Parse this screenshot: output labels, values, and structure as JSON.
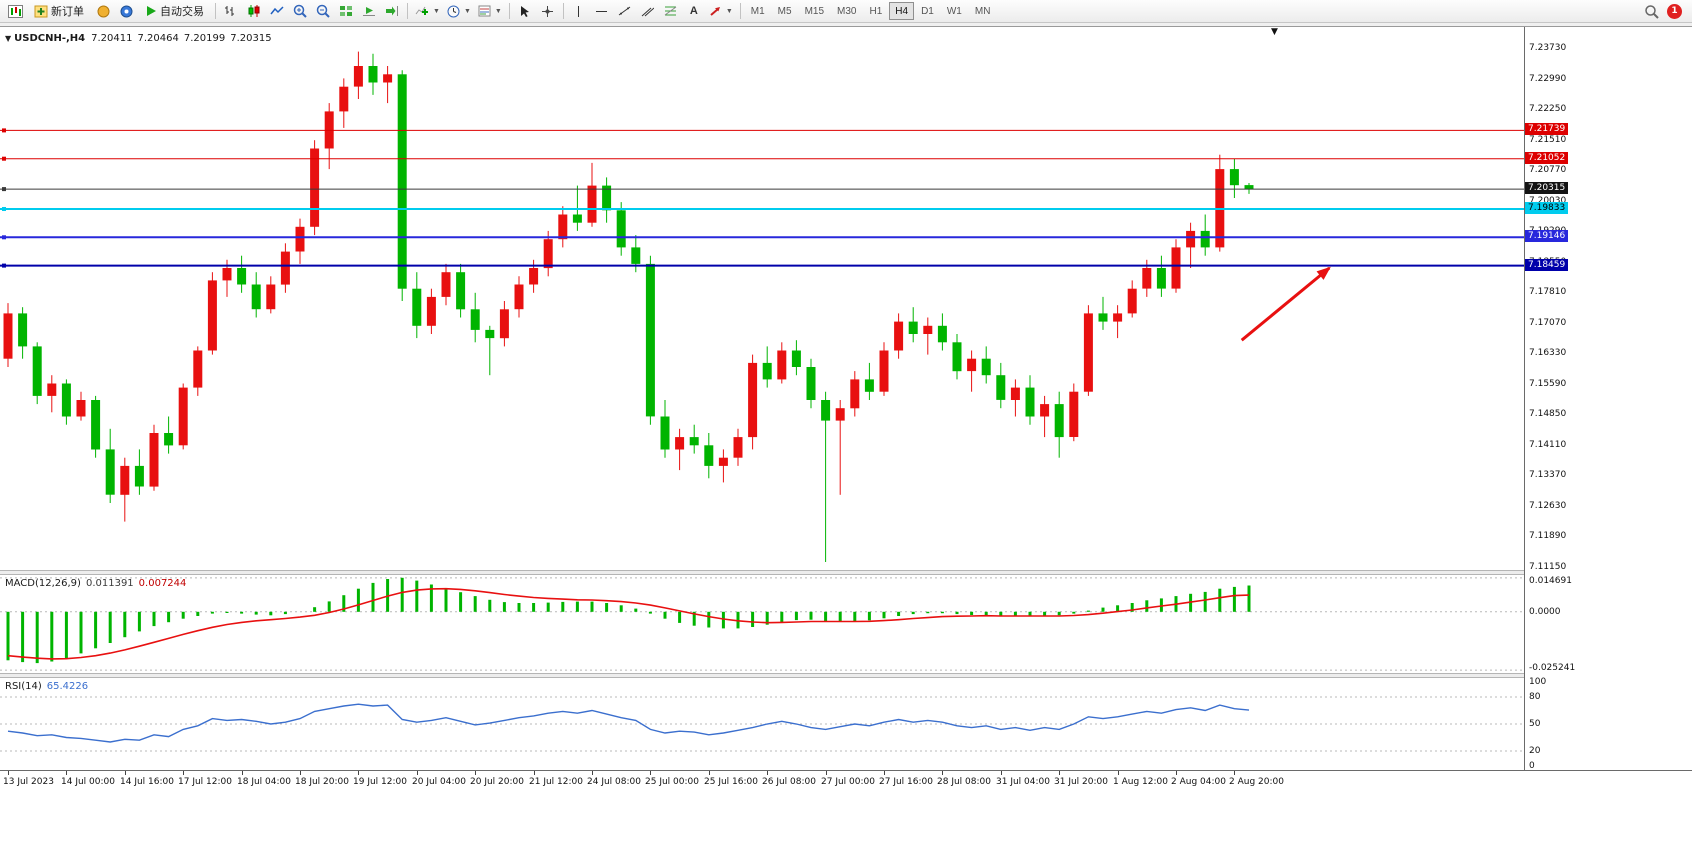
{
  "toolbar": {
    "new_order_label": "新订单",
    "auto_trading_label": "自动交易",
    "timeframes": [
      "M1",
      "M5",
      "M15",
      "M30",
      "H1",
      "H4",
      "D1",
      "W1",
      "MN"
    ],
    "active_timeframe": "H4",
    "notification_count": "1"
  },
  "chart": {
    "title_caret": "▼",
    "corner_caret": "▼",
    "symbol_title": "USDCNH-,H4",
    "ohlc": {
      "open": "7.20411",
      "high": "7.20464",
      "low": "7.20199",
      "close": "7.20315"
    }
  },
  "macd": {
    "label": "MACD(12,26,9)",
    "value_main": "0.011391",
    "value_signal": "0.007244",
    "axis_labels": [
      "0.014691",
      "0.0000",
      "-0.025241"
    ]
  },
  "rsi": {
    "label": "RSI(14)",
    "value": "65.4226",
    "levels": [
      80,
      50,
      20
    ],
    "axis_labels": [
      "100",
      "80",
      "50",
      "20",
      "0"
    ]
  },
  "chart_data": {
    "type": "candlestick",
    "symbol": "USDCNH",
    "timeframe": "H4",
    "price_range": [
      7.111,
      7.2415
    ],
    "price_axis_labels": [
      "7.23730",
      "7.22990",
      "7.22250",
      "7.21510",
      "7.20770",
      "7.20030",
      "7.19290",
      "7.18550",
      "7.17810",
      "7.17070",
      "7.16330",
      "7.15590",
      "7.14850",
      "7.14110",
      "7.13370",
      "7.12630",
      "7.11890",
      "7.11150"
    ],
    "time_labels": [
      "13 Jul 2023",
      "14 Jul 00:00",
      "14 Jul 16:00",
      "17 Jul 12:00",
      "18 Jul 04:00",
      "18 Jul 20:00",
      "19 Jul 12:00",
      "20 Jul 04:00",
      "20 Jul 20:00",
      "21 Jul 12:00",
      "24 Jul 08:00",
      "25 Jul 00:00",
      "25 Jul 16:00",
      "26 Jul 08:00",
      "27 Jul 00:00",
      "27 Jul 16:00",
      "28 Jul 08:00",
      "31 Jul 04:00",
      "31 Jul 20:00",
      "1 Aug 12:00",
      "2 Aug 04:00",
      "2 Aug 20:00"
    ],
    "time_label_every_n_bars": 4,
    "up_color": "#e81010",
    "down_color": "#00b400",
    "candles": [
      [
        7.162,
        7.1755,
        7.16,
        7.173
      ],
      [
        7.173,
        7.1745,
        7.162,
        7.165
      ],
      [
        7.165,
        7.166,
        7.151,
        7.153
      ],
      [
        7.153,
        7.158,
        7.149,
        7.156
      ],
      [
        7.156,
        7.157,
        7.146,
        7.148
      ],
      [
        7.148,
        7.154,
        7.147,
        7.152
      ],
      [
        7.152,
        7.153,
        7.138,
        7.14
      ],
      [
        7.14,
        7.145,
        7.127,
        7.129
      ],
      [
        7.129,
        7.138,
        7.1225,
        7.136
      ],
      [
        7.136,
        7.14,
        7.129,
        7.131
      ],
      [
        7.131,
        7.146,
        7.13,
        7.144
      ],
      [
        7.144,
        7.148,
        7.139,
        7.141
      ],
      [
        7.141,
        7.156,
        7.14,
        7.155
      ],
      [
        7.155,
        7.165,
        7.153,
        7.164
      ],
      [
        7.164,
        7.183,
        7.163,
        7.181
      ],
      [
        7.181,
        7.186,
        7.177,
        7.184
      ],
      [
        7.184,
        7.187,
        7.178,
        7.18
      ],
      [
        7.18,
        7.183,
        7.172,
        7.174
      ],
      [
        7.174,
        7.182,
        7.173,
        7.18
      ],
      [
        7.18,
        7.19,
        7.178,
        7.188
      ],
      [
        7.188,
        7.196,
        7.185,
        7.194
      ],
      [
        7.194,
        7.215,
        7.192,
        7.213
      ],
      [
        7.213,
        7.224,
        7.208,
        7.222
      ],
      [
        7.222,
        7.23,
        7.218,
        7.228
      ],
      [
        7.228,
        7.2365,
        7.225,
        7.233
      ],
      [
        7.233,
        7.236,
        7.226,
        7.229
      ],
      [
        7.229,
        7.233,
        7.224,
        7.231
      ],
      [
        7.231,
        7.232,
        7.176,
        7.179
      ],
      [
        7.179,
        7.183,
        7.167,
        7.17
      ],
      [
        7.17,
        7.179,
        7.168,
        7.177
      ],
      [
        7.177,
        7.185,
        7.175,
        7.183
      ],
      [
        7.183,
        7.185,
        7.172,
        7.174
      ],
      [
        7.174,
        7.178,
        7.166,
        7.169
      ],
      [
        7.169,
        7.17,
        7.158,
        7.167
      ],
      [
        7.167,
        7.176,
        7.165,
        7.174
      ],
      [
        7.174,
        7.182,
        7.172,
        7.18
      ],
      [
        7.18,
        7.186,
        7.178,
        7.184
      ],
      [
        7.184,
        7.193,
        7.182,
        7.191
      ],
      [
        7.191,
        7.199,
        7.189,
        7.197
      ],
      [
        7.197,
        7.204,
        7.193,
        7.195
      ],
      [
        7.195,
        7.2095,
        7.194,
        7.204
      ],
      [
        7.204,
        7.206,
        7.195,
        7.198
      ],
      [
        7.198,
        7.2,
        7.187,
        7.189
      ],
      [
        7.189,
        7.192,
        7.183,
        7.185
      ],
      [
        7.185,
        7.187,
        7.146,
        7.148
      ],
      [
        7.148,
        7.152,
        7.138,
        7.14
      ],
      [
        7.14,
        7.145,
        7.135,
        7.143
      ],
      [
        7.143,
        7.146,
        7.139,
        7.141
      ],
      [
        7.141,
        7.144,
        7.133,
        7.136
      ],
      [
        7.136,
        7.14,
        7.132,
        7.138
      ],
      [
        7.138,
        7.145,
        7.136,
        7.143
      ],
      [
        7.143,
        7.163,
        7.14,
        7.161
      ],
      [
        7.161,
        7.165,
        7.155,
        7.157
      ],
      [
        7.157,
        7.166,
        7.156,
        7.164
      ],
      [
        7.164,
        7.1665,
        7.158,
        7.16
      ],
      [
        7.16,
        7.162,
        7.15,
        7.152
      ],
      [
        7.152,
        7.154,
        7.1127,
        7.147
      ],
      [
        7.147,
        7.152,
        7.129,
        7.15
      ],
      [
        7.15,
        7.159,
        7.148,
        7.157
      ],
      [
        7.157,
        7.161,
        7.152,
        7.154
      ],
      [
        7.154,
        7.166,
        7.153,
        7.164
      ],
      [
        7.164,
        7.173,
        7.162,
        7.171
      ],
      [
        7.171,
        7.1745,
        7.166,
        7.168
      ],
      [
        7.168,
        7.172,
        7.163,
        7.17
      ],
      [
        7.17,
        7.173,
        7.164,
        7.166
      ],
      [
        7.166,
        7.168,
        7.157,
        7.159
      ],
      [
        7.159,
        7.164,
        7.154,
        7.162
      ],
      [
        7.162,
        7.165,
        7.156,
        7.158
      ],
      [
        7.158,
        7.161,
        7.15,
        7.152
      ],
      [
        7.152,
        7.157,
        7.148,
        7.155
      ],
      [
        7.155,
        7.158,
        7.146,
        7.148
      ],
      [
        7.148,
        7.153,
        7.143,
        7.151
      ],
      [
        7.151,
        7.154,
        7.138,
        7.143
      ],
      [
        7.143,
        7.156,
        7.142,
        7.154
      ],
      [
        7.154,
        7.175,
        7.153,
        7.173
      ],
      [
        7.173,
        7.177,
        7.169,
        7.171
      ],
      [
        7.171,
        7.175,
        7.167,
        7.173
      ],
      [
        7.173,
        7.181,
        7.172,
        7.179
      ],
      [
        7.179,
        7.186,
        7.177,
        7.184
      ],
      [
        7.184,
        7.187,
        7.177,
        7.179
      ],
      [
        7.179,
        7.191,
        7.178,
        7.189
      ],
      [
        7.189,
        7.195,
        7.184,
        7.193
      ],
      [
        7.193,
        7.197,
        7.187,
        7.189
      ],
      [
        7.189,
        7.2115,
        7.188,
        7.208
      ],
      [
        7.208,
        7.2105,
        7.201,
        7.2041
      ],
      [
        7.20411,
        7.20464,
        7.20199,
        7.20315
      ]
    ],
    "hlines": [
      {
        "price": 7.21739,
        "label": "7.21739",
        "color": "#dd0000",
        "width": 1,
        "tag_bg": "#dd0000",
        "tag_fg": "#ffffff"
      },
      {
        "price": 7.21052,
        "label": "7.21052",
        "color": "#dd0000",
        "width": 1,
        "tag_bg": "#dd0000",
        "tag_fg": "#ffffff"
      },
      {
        "price": 7.20315,
        "label": "7.20315",
        "color": "#3a3a3a",
        "width": 1,
        "tag_bg": "#141414",
        "tag_fg": "#ffffff"
      },
      {
        "price": 7.19833,
        "label": "7.19833",
        "color": "#00ccee",
        "width": 2,
        "tag_bg": "#00ccee",
        "tag_fg": "#000000"
      },
      {
        "price": 7.19146,
        "label": "7.19146",
        "color": "#2828dc",
        "width": 2,
        "tag_bg": "#2828dc",
        "tag_fg": "#ffffff"
      },
      {
        "price": 7.18459,
        "label": "7.18459",
        "color": "#0000aa",
        "width": 2,
        "tag_bg": "#0000aa",
        "tag_fg": "#ffffff"
      }
    ],
    "current_price": 7.20315,
    "arrow": {
      "from_bar": 84.5,
      "from_price": 7.1665,
      "to_bar": 90.5,
      "to_price": 7.184,
      "color": "#e81010"
    },
    "macd": {
      "range": [
        -0.0265,
        0.0155
      ],
      "hist_color": "#00b400",
      "signal_color": "#e81010",
      "histogram": [
        -0.021,
        -0.0218,
        -0.0222,
        -0.0215,
        -0.02,
        -0.018,
        -0.0158,
        -0.0135,
        -0.011,
        -0.0085,
        -0.0062,
        -0.0045,
        -0.003,
        -0.0018,
        -0.0008,
        -0.0005,
        -0.0008,
        -0.0012,
        -0.0015,
        -0.001,
        0.0,
        0.002,
        0.0045,
        0.0072,
        0.01,
        0.0125,
        0.0142,
        0.0147,
        0.0135,
        0.0118,
        0.0102,
        0.0085,
        0.0068,
        0.0052,
        0.0042,
        0.0038,
        0.0038,
        0.004,
        0.0043,
        0.0044,
        0.0044,
        0.0038,
        0.0028,
        0.0014,
        -0.0008,
        -0.003,
        -0.0048,
        -0.006,
        -0.0068,
        -0.0072,
        -0.0072,
        -0.0066,
        -0.0056,
        -0.0044,
        -0.0036,
        -0.0034,
        -0.004,
        -0.0044,
        -0.0042,
        -0.0037,
        -0.0028,
        -0.0018,
        -0.001,
        -0.0006,
        -0.0006,
        -0.001,
        -0.0014,
        -0.0016,
        -0.0018,
        -0.002,
        -0.002,
        -0.0018,
        -0.0015,
        -0.0008,
        0.0005,
        0.0018,
        0.0028,
        0.0038,
        0.005,
        0.0058,
        0.0068,
        0.0078,
        0.0086,
        0.01,
        0.0108,
        0.011391
      ],
      "signal": [
        -0.019,
        -0.0196,
        -0.0201,
        -0.0204,
        -0.0203,
        -0.0198,
        -0.019,
        -0.0179,
        -0.0165,
        -0.0149,
        -0.0132,
        -0.0115,
        -0.0098,
        -0.0082,
        -0.0067,
        -0.0055,
        -0.0046,
        -0.0039,
        -0.0034,
        -0.0029,
        -0.0023,
        -0.0015,
        -0.0003,
        0.0012,
        0.003,
        0.0049,
        0.0068,
        0.0084,
        0.0094,
        0.0099,
        0.01,
        0.0097,
        0.0091,
        0.0083,
        0.0075,
        0.0068,
        0.0062,
        0.0058,
        0.0055,
        0.0052,
        0.0051,
        0.0048,
        0.0044,
        0.0038,
        0.0029,
        0.0017,
        0.0004,
        -0.0009,
        -0.0021,
        -0.0031,
        -0.0039,
        -0.0044,
        -0.0047,
        -0.0046,
        -0.0044,
        -0.0042,
        -0.0042,
        -0.0042,
        -0.0042,
        -0.0041,
        -0.0038,
        -0.0034,
        -0.0029,
        -0.0025,
        -0.0021,
        -0.0019,
        -0.0018,
        -0.0017,
        -0.0018,
        -0.0018,
        -0.0018,
        -0.0018,
        -0.0018,
        -0.0016,
        -0.0012,
        -0.0006,
        0.0001,
        0.0008,
        0.0017,
        0.0025,
        0.0033,
        0.0042,
        0.0051,
        0.0061,
        0.007,
        0.007244
      ]
    },
    "rsi": {
      "scale": [
        0,
        100
      ],
      "color": "#3b6fce",
      "values": [
        42,
        40,
        37,
        38,
        35,
        34,
        32,
        30,
        33,
        32,
        38,
        36,
        44,
        48,
        56,
        54,
        55,
        53,
        50,
        52,
        56,
        64,
        67,
        70,
        72,
        70,
        71,
        55,
        52,
        54,
        57,
        53,
        49,
        51,
        54,
        57,
        59,
        62,
        64,
        62,
        65,
        61,
        57,
        54,
        44,
        40,
        42,
        41,
        38,
        40,
        43,
        46,
        50,
        53,
        50,
        46,
        44,
        47,
        50,
        48,
        52,
        55,
        52,
        54,
        52,
        48,
        46,
        48,
        44,
        46,
        43,
        46,
        44,
        50,
        58,
        56,
        58,
        61,
        64,
        62,
        66,
        68,
        65,
        71,
        67,
        65.4226
      ]
    }
  }
}
